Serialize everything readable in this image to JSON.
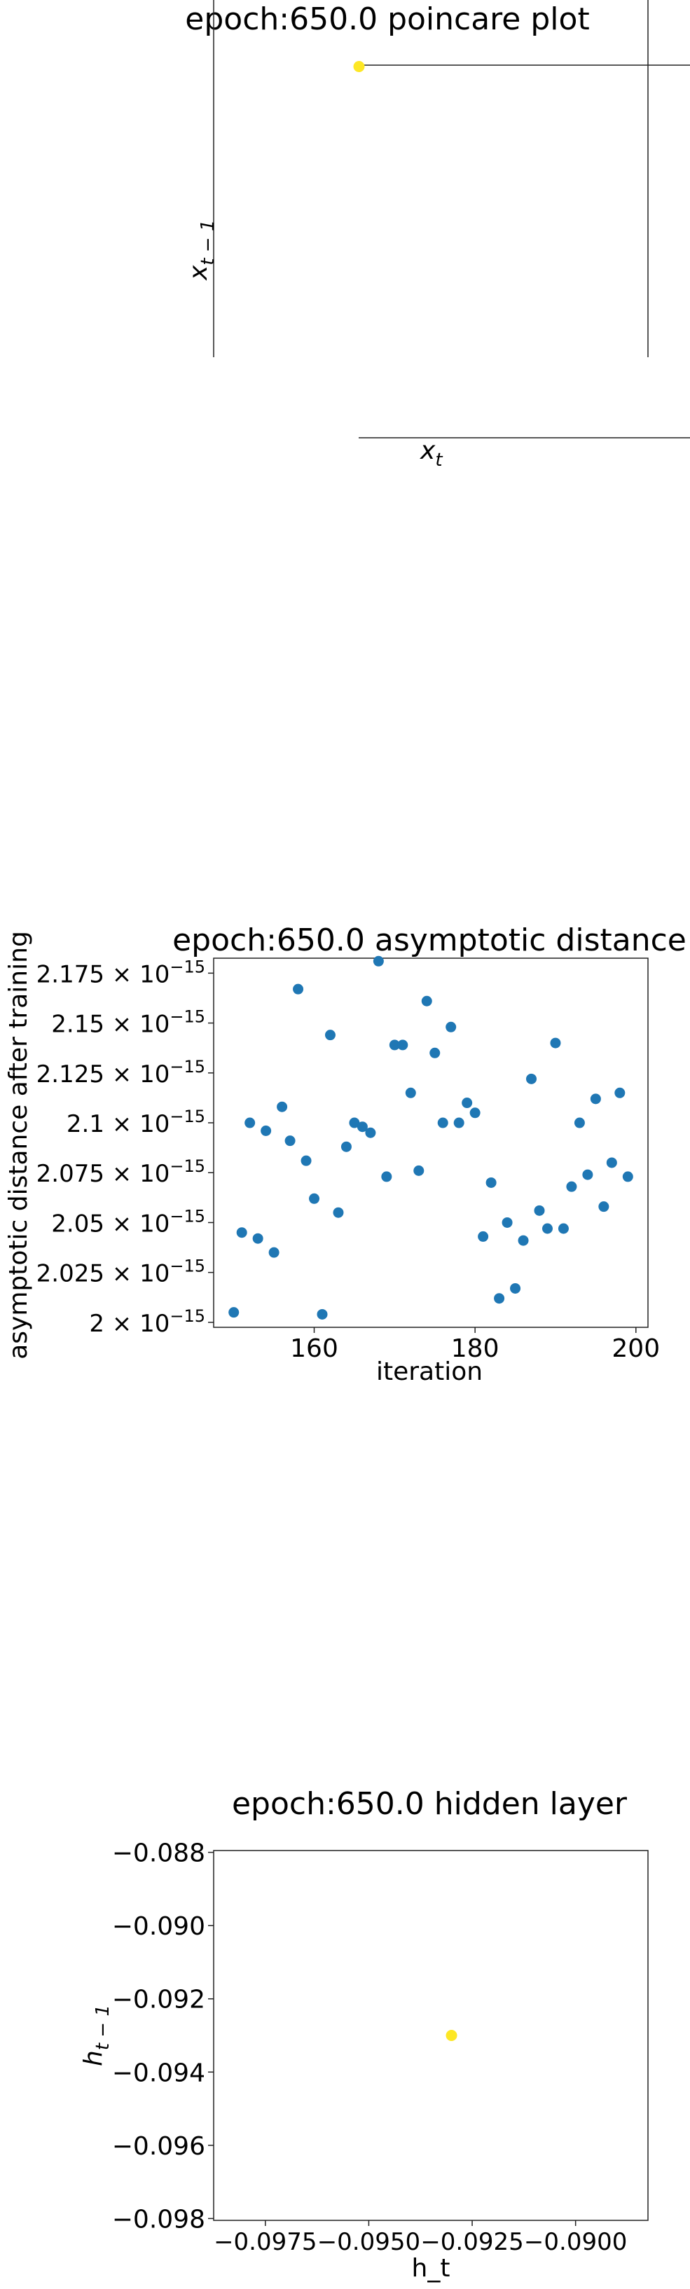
{
  "chart_data": [
    {
      "type": "scatter",
      "title": "epoch:650.0 poincare plot",
      "xlabel_base": "x",
      "xlabel_sub": "t",
      "ylabel_base": "x",
      "ylabel_sub": "t − 1",
      "series": [
        {
          "x": [
            0.5
          ],
          "y": [
            0.5
          ],
          "color": "#fde725"
        }
      ],
      "xlim": [
        0,
        1
      ],
      "ylim": [
        0,
        1
      ],
      "grid": false,
      "spines": "offset"
    },
    {
      "type": "scatter",
      "title": "epoch:650.0 asymptotic distance",
      "xlabel": "iteration",
      "ylabel": "asymptotic distance after training",
      "xlim": [
        147.5,
        201.5
      ],
      "ylim": [
        1.9975,
        2.1825
      ],
      "xticks": [
        {
          "value": 160,
          "label": "160"
        },
        {
          "value": 180,
          "label": "180"
        },
        {
          "value": 200,
          "label": "200"
        }
      ],
      "yticks": [
        {
          "value": 2.0,
          "mantissa": "2",
          "exp": "−15"
        },
        {
          "value": 2.025,
          "mantissa": "2.025",
          "exp": "−15"
        },
        {
          "value": 2.05,
          "mantissa": "2.05",
          "exp": "−15"
        },
        {
          "value": 2.075,
          "mantissa": "2.075",
          "exp": "−15"
        },
        {
          "value": 2.1,
          "mantissa": "2.1",
          "exp": "−15"
        },
        {
          "value": 2.125,
          "mantissa": "2.125",
          "exp": "−15"
        },
        {
          "value": 2.15,
          "mantissa": "2.15",
          "exp": "−15"
        },
        {
          "value": 2.175,
          "mantissa": "2.175",
          "exp": "−15"
        }
      ],
      "y_unit_note": "values in units of 1e-15",
      "color": "#1f77b4",
      "series": [
        {
          "x": [
            150,
            151,
            152,
            153,
            154,
            155,
            156,
            157,
            158,
            159,
            160,
            161,
            162,
            163,
            164,
            165,
            166,
            167,
            168,
            169,
            170,
            171,
            172,
            173,
            174,
            175,
            176,
            177,
            178,
            179,
            180,
            181,
            182,
            183,
            184,
            185,
            186,
            187,
            188,
            189,
            190,
            191,
            192,
            193,
            194,
            195,
            196,
            197,
            198,
            199
          ],
          "y": [
            2.005,
            2.045,
            2.1,
            2.042,
            2.096,
            2.035,
            2.108,
            2.091,
            2.167,
            2.081,
            2.062,
            2.004,
            2.144,
            2.055,
            2.088,
            2.1,
            2.098,
            2.095,
            2.181,
            2.073,
            2.139,
            2.139,
            2.115,
            2.076,
            2.161,
            2.135,
            2.1,
            2.148,
            2.1,
            2.11,
            2.105,
            2.043,
            2.07,
            2.012,
            2.05,
            2.017,
            2.041,
            2.122,
            2.056,
            2.047,
            2.14,
            2.047,
            2.068,
            2.1,
            2.074,
            2.112,
            2.058,
            2.08,
            2.115,
            2.073
          ]
        }
      ],
      "grid": false
    },
    {
      "type": "scatter",
      "title": "epoch:650.0 hidden layer",
      "xlabel": "h_t",
      "ylabel_base": "h",
      "ylabel_sub": "t − 1",
      "xlim": [
        -0.09875,
        -0.08825
      ],
      "ylim": [
        -0.09805,
        -0.08795
      ],
      "xticks": [
        {
          "value": -0.0975,
          "label": "−0.0975"
        },
        {
          "value": -0.095,
          "label": "−0.0950"
        },
        {
          "value": -0.0925,
          "label": "−0.0925"
        },
        {
          "value": -0.09,
          "label": "−0.0900"
        }
      ],
      "yticks": [
        {
          "value": -0.098,
          "label": "−0.098"
        },
        {
          "value": -0.096,
          "label": "−0.096"
        },
        {
          "value": -0.094,
          "label": "−0.094"
        },
        {
          "value": -0.092,
          "label": "−0.092"
        },
        {
          "value": -0.09,
          "label": "−0.090"
        },
        {
          "value": -0.088,
          "label": "−0.088"
        }
      ],
      "series": [
        {
          "x": [
            -0.093
          ],
          "y": [
            -0.093
          ],
          "color": "#fde725"
        }
      ],
      "grid": false
    }
  ]
}
